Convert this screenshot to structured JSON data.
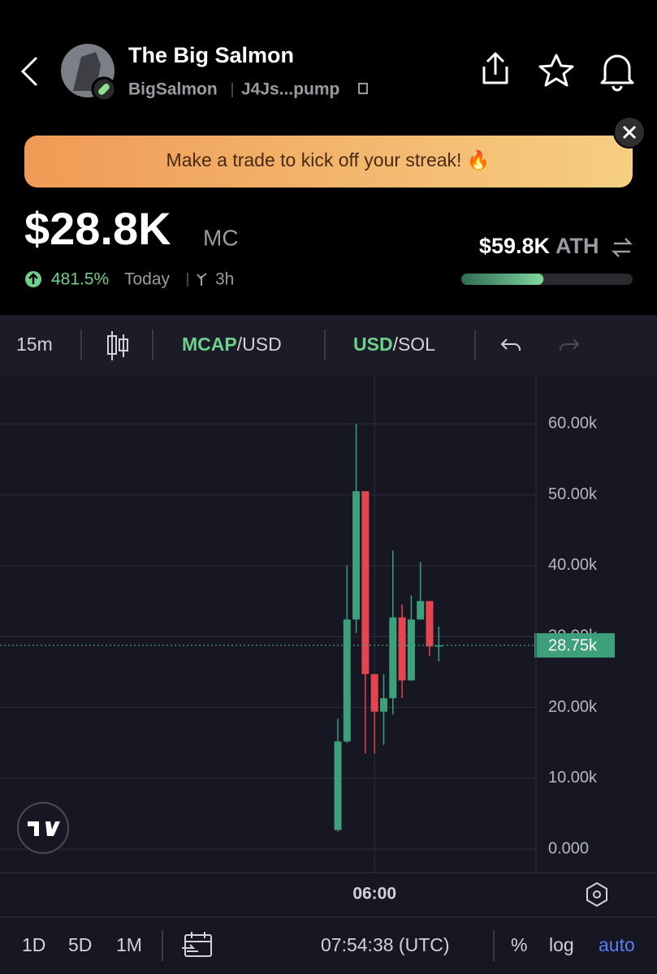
{
  "header": {
    "title": "The Big Salmon",
    "ticker": "BigSalmon",
    "address": "J4Js...pump"
  },
  "banner": {
    "text": "Make a trade to kick off your streak! 🔥"
  },
  "stats": {
    "market_cap": "$28.8K",
    "mc_label": "MC",
    "change": "481.5%",
    "change_period": "Today",
    "age": "3h",
    "ath": "$59.8K",
    "ath_label": "ATH",
    "ath_progress": 48
  },
  "toolbar": {
    "interval": "15m",
    "pair1_main": "MCAP",
    "pair1_rest": "/USD",
    "pair2_main": "USD",
    "pair2_rest": "/SOL"
  },
  "chart_data": {
    "type": "candlestick",
    "categories": [
      null,
      null,
      null,
      null,
      "06:00",
      null,
      null,
      null,
      null,
      null,
      null,
      null
    ],
    "open": [
      2700,
      15200,
      32400,
      50500,
      24700,
      19400,
      21300,
      32700,
      23800,
      32400,
      35000,
      28700
    ],
    "high": [
      18400,
      40000,
      60000,
      50500,
      24700,
      24700,
      42100,
      34500,
      35800,
      40500,
      35000,
      31400
    ],
    "low": [
      2500,
      15000,
      30500,
      13500,
      13500,
      14700,
      19000,
      21300,
      23800,
      32400,
      27300,
      26500
    ],
    "close": [
      15200,
      32400,
      50500,
      24700,
      19400,
      21300,
      32700,
      23800,
      32400,
      35000,
      28600,
      28750
    ],
    "up_color": "#3e9f7b",
    "down_color": "#e5454f",
    "ylim": [
      -3300,
      66900
    ],
    "yticks": [
      {
        "value": 0,
        "label": "0.000"
      },
      {
        "value": 10000,
        "label": "10.00k"
      },
      {
        "value": 20000,
        "label": "20.00k"
      },
      {
        "value": 30000,
        "label": "30.00k"
      },
      {
        "value": 40000,
        "label": "40.00k"
      },
      {
        "value": 50000,
        "label": "50.00k"
      },
      {
        "value": 60000,
        "label": "60.00k"
      }
    ],
    "last_price": {
      "value": 28750,
      "label": "28.75k"
    },
    "grid": true
  },
  "footer": {
    "ranges": [
      "1D",
      "5D",
      "1M"
    ],
    "time": "07:54:38 (UTC)",
    "percent": "%",
    "log": "log",
    "auto": "auto"
  }
}
